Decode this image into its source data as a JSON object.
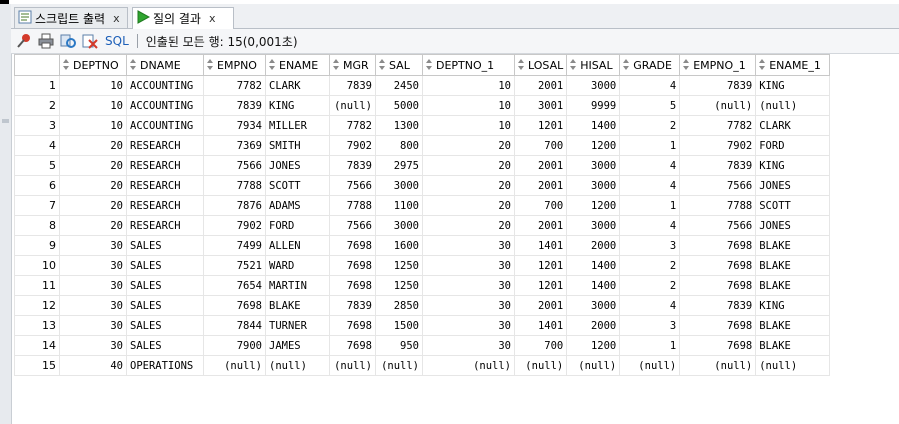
{
  "tabs": [
    {
      "label": "스크립트 출력",
      "icon": "script-output-icon",
      "active": false
    },
    {
      "label": "질의 결과",
      "icon": "run-query-icon",
      "active": true
    }
  ],
  "toolbar": {
    "sql_label": "SQL",
    "status_text": "인출된 모든 행: 15(0,001초)"
  },
  "columns": [
    "DEPTNO",
    "DNAME",
    "EMPNO",
    "ENAME",
    "MGR",
    "SAL",
    "DEPTNO_1",
    "LOSAL",
    "HISAL",
    "GRADE",
    "EMPNO_1",
    "ENAME_1"
  ],
  "rows": [
    [
      "1",
      "10",
      "ACCOUNTING",
      "7782",
      "CLARK",
      "7839",
      "2450",
      "10",
      "2001",
      "3000",
      "4",
      "7839",
      "KING"
    ],
    [
      "2",
      "10",
      "ACCOUNTING",
      "7839",
      "KING",
      "(null)",
      "5000",
      "10",
      "3001",
      "9999",
      "5",
      "(null)",
      "(null)"
    ],
    [
      "3",
      "10",
      "ACCOUNTING",
      "7934",
      "MILLER",
      "7782",
      "1300",
      "10",
      "1201",
      "1400",
      "2",
      "7782",
      "CLARK"
    ],
    [
      "4",
      "20",
      "RESEARCH",
      "7369",
      "SMITH",
      "7902",
      "800",
      "20",
      "700",
      "1200",
      "1",
      "7902",
      "FORD"
    ],
    [
      "5",
      "20",
      "RESEARCH",
      "7566",
      "JONES",
      "7839",
      "2975",
      "20",
      "2001",
      "3000",
      "4",
      "7839",
      "KING"
    ],
    [
      "6",
      "20",
      "RESEARCH",
      "7788",
      "SCOTT",
      "7566",
      "3000",
      "20",
      "2001",
      "3000",
      "4",
      "7566",
      "JONES"
    ],
    [
      "7",
      "20",
      "RESEARCH",
      "7876",
      "ADAMS",
      "7788",
      "1100",
      "20",
      "700",
      "1200",
      "1",
      "7788",
      "SCOTT"
    ],
    [
      "8",
      "20",
      "RESEARCH",
      "7902",
      "FORD",
      "7566",
      "3000",
      "20",
      "2001",
      "3000",
      "4",
      "7566",
      "JONES"
    ],
    [
      "9",
      "30",
      "SALES",
      "7499",
      "ALLEN",
      "7698",
      "1600",
      "30",
      "1401",
      "2000",
      "3",
      "7698",
      "BLAKE"
    ],
    [
      "10",
      "30",
      "SALES",
      "7521",
      "WARD",
      "7698",
      "1250",
      "30",
      "1201",
      "1400",
      "2",
      "7698",
      "BLAKE"
    ],
    [
      "11",
      "30",
      "SALES",
      "7654",
      "MARTIN",
      "7698",
      "1250",
      "30",
      "1201",
      "1400",
      "2",
      "7698",
      "BLAKE"
    ],
    [
      "12",
      "30",
      "SALES",
      "7698",
      "BLAKE",
      "7839",
      "2850",
      "30",
      "2001",
      "3000",
      "4",
      "7839",
      "KING"
    ],
    [
      "13",
      "30",
      "SALES",
      "7844",
      "TURNER",
      "7698",
      "1500",
      "30",
      "1401",
      "2000",
      "3",
      "7698",
      "BLAKE"
    ],
    [
      "14",
      "30",
      "SALES",
      "7900",
      "JAMES",
      "7698",
      "950",
      "30",
      "700",
      "1200",
      "1",
      "7698",
      "BLAKE"
    ],
    [
      "15",
      "40",
      "OPERATIONS",
      "(null)",
      "(null)",
      "(null)",
      "(null)",
      "(null)",
      "(null)",
      "(null)",
      "(null)",
      "(null)",
      "(null)"
    ]
  ],
  "text_columns": [
    1,
    3,
    11
  ],
  "colors": {
    "sql_link": "#1d5fb8",
    "tab_bg": "#eef0f3",
    "header_border": "#c8c8c8"
  }
}
